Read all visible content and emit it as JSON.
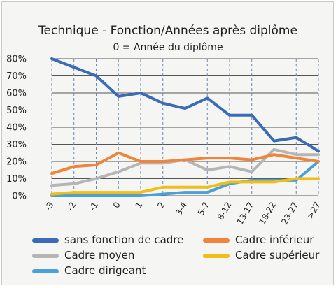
{
  "chart_data": {
    "type": "line",
    "title": "Technique - Fonction/Années après diplôme",
    "subtitle": "0 = Année du diplôme",
    "xlabel": "",
    "ylabel": "",
    "ylim": [
      0,
      80
    ],
    "yticks": [
      "0%",
      "10%",
      "20%",
      "30%",
      "40%",
      "50%",
      "60%",
      "70%",
      "80%"
    ],
    "categories": [
      "-3",
      "-2",
      "-1",
      "0",
      "1",
      "2",
      "3-4",
      "5-7",
      "8-12",
      "13-17",
      "18-22",
      "23-27",
      ">27"
    ],
    "grid": "horizontal solid, vertical dashed",
    "legend_position": "bottom",
    "series": [
      {
        "name": "sans fonction de cadre",
        "color": "#3b6bb7",
        "values": [
          80,
          75,
          70,
          58,
          60,
          54,
          51,
          57,
          47,
          47,
          32,
          34,
          26
        ]
      },
      {
        "name": "Cadre inférieur",
        "color": "#f0843a",
        "values": [
          13,
          17,
          18,
          25,
          20,
          20,
          21,
          22,
          22,
          21,
          24,
          22,
          20
        ]
      },
      {
        "name": "Cadre moyen",
        "color": "#b5b5b5",
        "values": [
          6,
          7,
          10,
          14,
          19,
          19,
          21,
          15,
          17,
          14,
          27,
          24,
          24
        ]
      },
      {
        "name": "Cadre supérieur",
        "color": "#f3bd17",
        "values": [
          1,
          2,
          2,
          2,
          2,
          5,
          5,
          5,
          8,
          8,
          8,
          10,
          10
        ]
      },
      {
        "name": "Cadre dirigeant",
        "color": "#4aa0d9",
        "values": [
          0,
          0,
          0,
          0,
          0,
          1,
          2,
          2,
          7,
          9,
          9,
          9,
          20
        ]
      }
    ]
  }
}
